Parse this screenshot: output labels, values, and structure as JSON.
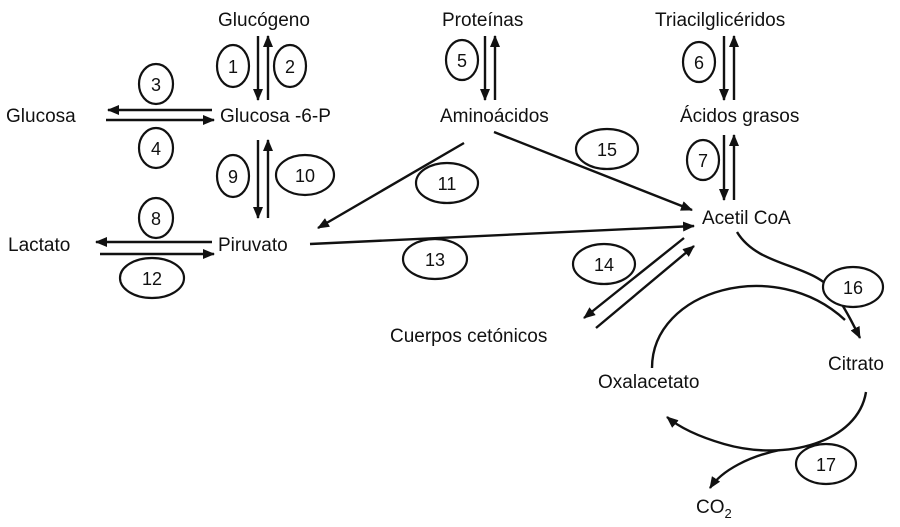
{
  "metabolites": {
    "glucogeno": "Glucógeno",
    "proteinas": "Proteínas",
    "triacilgliceridos": "Triacilglicéridos",
    "glucosa": "Glucosa",
    "glucosa6p": "Glucosa -6-P",
    "aminoacidos": "Aminoácidos",
    "acidos_grasos": "Ácidos grasos",
    "lactato": "Lactato",
    "piruvato": "Piruvato",
    "acetil_coa": "Acetil CoA",
    "cuerpos_cetonicos": "Cuerpos cetónicos",
    "oxalacetato": "Oxalacetato",
    "citrato": "Citrato",
    "co2_base": "CO",
    "co2_sub": "2"
  },
  "reactions": [
    "1",
    "2",
    "3",
    "4",
    "5",
    "6",
    "7",
    "8",
    "9",
    "10",
    "11",
    "12",
    "13",
    "14",
    "15",
    "16",
    "17"
  ]
}
